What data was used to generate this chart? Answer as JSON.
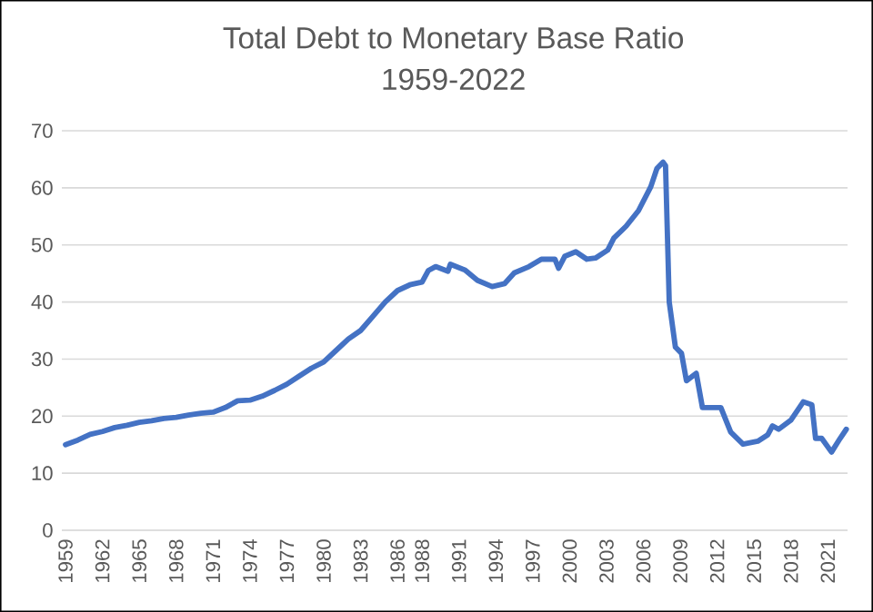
{
  "chart_data": {
    "type": "line",
    "title": "Total Debt to Monetary Base Ratio",
    "subtitle": "1959-2022",
    "x": [
      1959,
      1960,
      1961,
      1962,
      1963,
      1964,
      1965,
      1966,
      1967,
      1968,
      1969,
      1970,
      1971,
      1972,
      1973,
      1974,
      1975,
      1976,
      1977,
      1978,
      1979,
      1980,
      1981,
      1982,
      1983,
      1984,
      1985,
      1986,
      1987,
      1988,
      1988.5,
      1989.1,
      1990.1,
      1990.3,
      1991.5,
      1992.5,
      1993.7,
      1994.7,
      1995.5,
      1996.7,
      1997.7,
      1998.8,
      1999.1,
      1999.6,
      2000.5,
      2001.4,
      2002.1,
      2003.1,
      2003.6,
      2004.6,
      2005.6,
      2006.6,
      2007.1,
      2007.6,
      2007.8,
      2008.1,
      2008.6,
      2009.1,
      2009.5,
      2010.3,
      2010.8,
      2011.8,
      2012.3,
      2013.1,
      2014.1,
      2015.3,
      2016.1,
      2016.5,
      2017.0,
      2018.0,
      2019.0,
      2019.7,
      2020.0,
      2020.5,
      2021.3,
      2022.0,
      2022.5
    ],
    "series": [
      {
        "color": "#4472c4",
        "values": [
          15,
          15.8,
          16.8,
          17.3,
          18,
          18.4,
          18.9,
          19.2,
          19.6,
          19.8,
          20.2,
          20.5,
          20.7,
          21.5,
          22.7,
          22.8,
          23.5,
          24.5,
          25.6,
          27,
          28.4,
          29.5,
          31.5,
          33.5,
          35,
          37.5,
          40,
          42,
          43,
          43.5,
          45.5,
          46.2,
          45.4,
          46.6,
          45.6,
          43.8,
          42.7,
          43.2,
          45.1,
          46.2,
          47.5,
          47.5,
          45.9,
          48.0,
          48.8,
          47.5,
          47.7,
          49.1,
          51.2,
          53.3,
          56,
          60.2,
          63.4,
          64.5,
          63.9,
          40,
          32.1,
          31,
          26.2,
          27.5,
          21.5,
          21.5,
          21.5,
          17.2,
          15.1,
          15.6,
          16.7,
          18.3,
          17.7,
          19.3,
          22.5,
          22,
          16.1,
          16.1,
          13.7,
          16.1,
          17.7
        ]
      }
    ],
    "xlim": [
      1958.7,
      2022.6
    ],
    "xticks": [
      1959,
      1962,
      1965,
      1968,
      1971,
      1974,
      1977,
      1980,
      1983,
      1986,
      1988,
      1991,
      1994,
      1997,
      2000,
      2003,
      2006,
      2009,
      2012,
      2015,
      2018,
      2021
    ],
    "ylim": [
      0,
      70
    ],
    "yticks": [
      0,
      10,
      20,
      30,
      40,
      50,
      60,
      70
    ],
    "grid": "y",
    "legend": false,
    "marker": "none",
    "line_style": "solid"
  }
}
